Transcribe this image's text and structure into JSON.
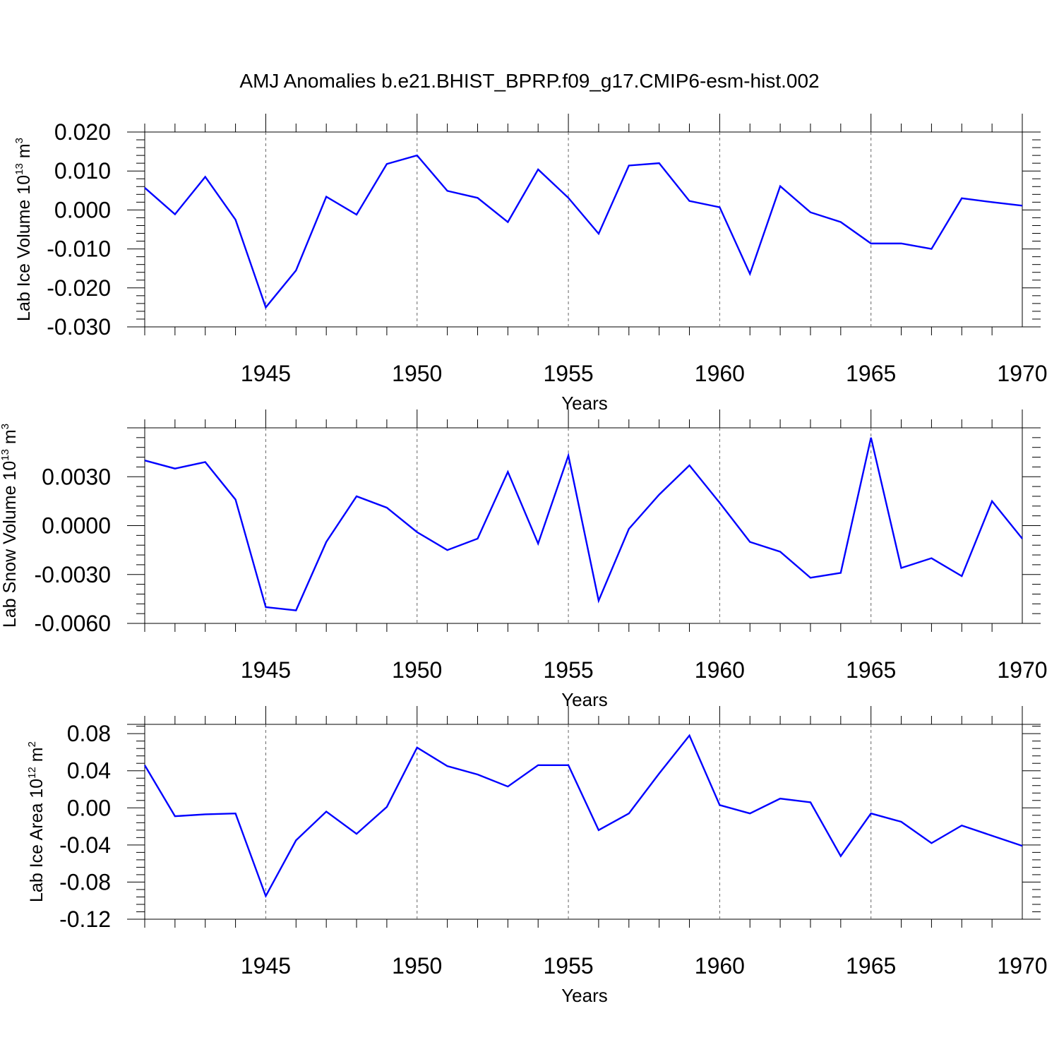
{
  "chart_data": [
    {
      "type": "line",
      "title": "AMJ Anomalies b.e21.BHIST_BPRP.f09_g17.CMIP6-esm-hist.002",
      "xlabel": "Years",
      "ylabel": {
        "text": "Lab Ice Volume 10",
        "exp": "13",
        "unit": " m",
        "unit_exp": "3"
      },
      "xlim": [
        1941,
        1970
      ],
      "ylim": [
        -0.03,
        0.02
      ],
      "xticks": [
        1945,
        1950,
        1955,
        1960,
        1965,
        1970
      ],
      "yticks": [
        -0.03,
        -0.02,
        -0.01,
        0.0,
        0.01,
        0.02
      ],
      "ytick_labels": [
        "-0.030",
        "-0.020",
        "-0.010",
        "0.000",
        "0.010",
        "0.020"
      ],
      "grid": "vertical dashed at major x ticks",
      "color": "#0000ff",
      "x": [
        1941,
        1942,
        1943,
        1944,
        1945,
        1946,
        1947,
        1948,
        1949,
        1950,
        1951,
        1952,
        1953,
        1954,
        1955,
        1956,
        1957,
        1958,
        1959,
        1960,
        1961,
        1962,
        1963,
        1964,
        1965,
        1966,
        1967,
        1968,
        1969,
        1970
      ],
      "values": [
        0.0057,
        -0.0011,
        0.0085,
        -0.0025,
        -0.025,
        -0.0155,
        0.0034,
        -0.0012,
        0.0118,
        0.014,
        0.0049,
        0.0031,
        -0.0031,
        0.0104,
        0.0031,
        -0.0061,
        0.0114,
        0.012,
        0.0023,
        0.0007,
        -0.0164,
        0.0061,
        -0.0006,
        -0.0031,
        -0.0086,
        -0.0086,
        -0.01,
        0.003,
        0.002,
        0.0011
      ]
    },
    {
      "type": "line",
      "xlabel": "Years",
      "ylabel": {
        "text": "Lab Snow Volume 10",
        "exp": "13",
        "unit": " m",
        "unit_exp": "3"
      },
      "xlim": [
        1941,
        1970
      ],
      "ylim": [
        -0.006,
        0.006
      ],
      "xticks": [
        1945,
        1950,
        1955,
        1960,
        1965,
        1970
      ],
      "yticks": [
        -0.006,
        -0.003,
        0.0,
        0.003
      ],
      "ytick_labels": [
        "-0.0060",
        "-0.0030",
        "0.0000",
        "0.0030"
      ],
      "grid": "vertical dashed at major x ticks",
      "color": "#0000ff",
      "x": [
        1941,
        1942,
        1943,
        1944,
        1945,
        1946,
        1947,
        1948,
        1949,
        1950,
        1951,
        1952,
        1953,
        1954,
        1955,
        1956,
        1957,
        1958,
        1959,
        1960,
        1961,
        1962,
        1963,
        1964,
        1965,
        1966,
        1967,
        1968,
        1969,
        1970
      ],
      "values": [
        0.004,
        0.0035,
        0.0039,
        0.0016,
        -0.005,
        -0.0052,
        -0.001,
        0.0018,
        0.0011,
        -0.0004,
        -0.0015,
        -0.0008,
        0.0033,
        -0.0011,
        0.0043,
        -0.0046,
        -0.0002,
        0.0019,
        0.0037,
        0.0014,
        -0.001,
        -0.0016,
        -0.0032,
        -0.0029,
        0.0054,
        -0.0026,
        -0.002,
        -0.0031,
        0.0015,
        -0.0008
      ]
    },
    {
      "type": "line",
      "xlabel": "Years",
      "ylabel": {
        "text": "Lab Ice Area 10",
        "exp": "12",
        "unit": " m",
        "unit_exp": "2"
      },
      "xlim": [
        1941,
        1970
      ],
      "ylim": [
        -0.12,
        0.09
      ],
      "xticks": [
        1945,
        1950,
        1955,
        1960,
        1965,
        1970
      ],
      "yticks": [
        -0.12,
        -0.08,
        -0.04,
        0.0,
        0.04,
        0.08
      ],
      "ytick_labels": [
        "-0.12",
        "-0.08",
        "-0.04",
        "0.00",
        "0.04",
        "0.08"
      ],
      "grid": "vertical dashed at major x ticks",
      "color": "#0000ff",
      "x": [
        1941,
        1942,
        1943,
        1944,
        1945,
        1946,
        1947,
        1948,
        1949,
        1950,
        1951,
        1952,
        1953,
        1954,
        1955,
        1956,
        1957,
        1958,
        1959,
        1960,
        1961,
        1962,
        1963,
        1964,
        1965,
        1966,
        1967,
        1968,
        1969,
        1970
      ],
      "values": [
        0.046,
        -0.009,
        -0.007,
        -0.006,
        -0.095,
        -0.035,
        -0.004,
        -0.028,
        0.001,
        0.065,
        0.045,
        0.036,
        0.023,
        0.046,
        0.046,
        -0.024,
        -0.006,
        0.037,
        0.078,
        0.003,
        -0.006,
        0.01,
        0.006,
        -0.052,
        -0.006,
        -0.015,
        -0.038,
        -0.019,
        -0.03,
        -0.041
      ]
    }
  ]
}
